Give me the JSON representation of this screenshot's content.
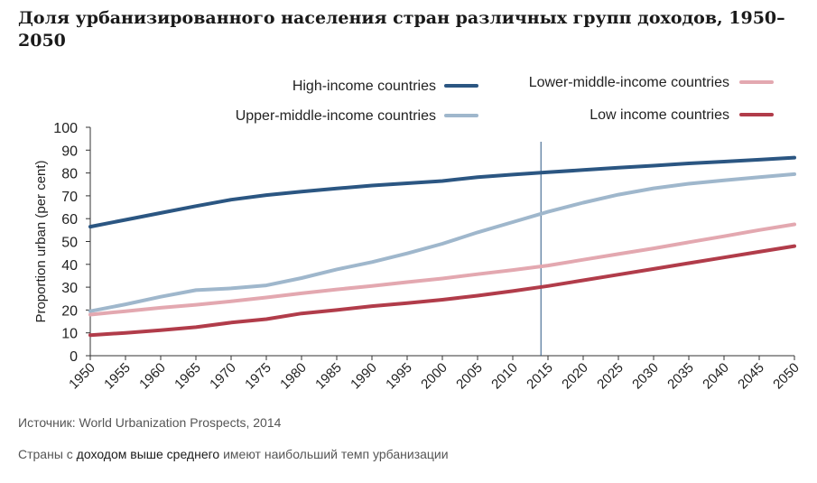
{
  "page": {
    "title": "Доля урбанизированного населения стран различных групп доходов, 1950–2050",
    "source": "Источник: World Urbanization Prospects, 2014",
    "caption_before": "Страны с ",
    "caption_highlight": "доходом выше среднего",
    "caption_after": " имеют наибольший темп урбанизации"
  },
  "chart_data": {
    "type": "line",
    "title": "",
    "xlabel": "",
    "ylabel": "Proportion urban (per cent)",
    "ylim": [
      0,
      100
    ],
    "yticks": [
      0,
      10,
      20,
      30,
      40,
      50,
      60,
      70,
      80,
      90,
      100
    ],
    "x": [
      1950,
      1955,
      1960,
      1965,
      1970,
      1975,
      1980,
      1985,
      1990,
      1995,
      2000,
      2005,
      2010,
      2015,
      2020,
      2025,
      2030,
      2035,
      2040,
      2045,
      2050
    ],
    "x_tick_labels": [
      "1950",
      "1955",
      "1960",
      "1965",
      "1970",
      "1975",
      "1980",
      "1985",
      "1990",
      "1995",
      "2000",
      "2005",
      "2010",
      "2015",
      "2020",
      "2025",
      "2030",
      "2035",
      "2040",
      "2045",
      "2050"
    ],
    "grid": false,
    "vertical_marker": 2014,
    "legend_position": "top",
    "series": [
      {
        "name": "High-income countries",
        "color": "#2b5682",
        "values": [
          56.5,
          59.5,
          62.5,
          65.5,
          68.3,
          70.3,
          71.8,
          73.2,
          74.5,
          75.5,
          76.5,
          78.2,
          79.3,
          80.3,
          81.3,
          82.3,
          83.2,
          84.2,
          85.0,
          85.8,
          86.7
        ]
      },
      {
        "name": "Upper-middle-income countries",
        "color": "#9fb7cc",
        "values": [
          19.5,
          22.5,
          25.8,
          28.7,
          29.5,
          30.8,
          34.0,
          37.8,
          41.0,
          44.8,
          49.0,
          54.0,
          58.5,
          63.0,
          67.0,
          70.5,
          73.3,
          75.3,
          76.8,
          78.2,
          79.5
        ]
      },
      {
        "name": "Lower-middle-income countries",
        "color": "#e3a8b0",
        "values": [
          18.0,
          19.5,
          21.0,
          22.3,
          23.8,
          25.5,
          27.3,
          29.0,
          30.5,
          32.2,
          33.8,
          35.7,
          37.5,
          39.5,
          42.0,
          44.5,
          47.0,
          49.7,
          52.3,
          55.0,
          57.5
        ]
      },
      {
        "name": "Low income countries",
        "color": "#b13c4a",
        "values": [
          9.0,
          10.0,
          11.2,
          12.5,
          14.5,
          16.0,
          18.5,
          20.0,
          21.7,
          23.0,
          24.5,
          26.3,
          28.3,
          30.5,
          33.0,
          35.5,
          38.0,
          40.5,
          43.0,
          45.5,
          48.0
        ]
      }
    ]
  }
}
